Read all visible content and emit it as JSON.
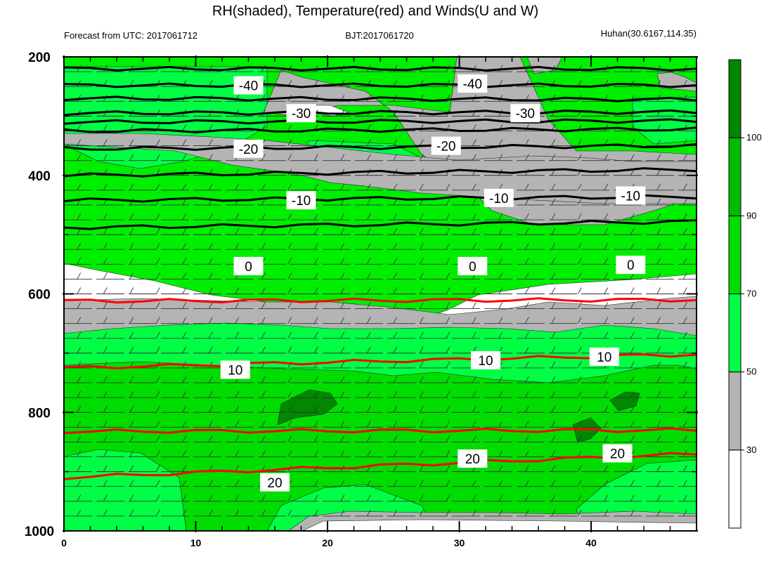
{
  "chart_data": {
    "type": "heatmap",
    "title": "RH(shaded), Temperature(red) and Winds(U and W)",
    "subtitle_left": "Forecast from UTC: 2017061712",
    "subtitle_center": "BJT:2017061720",
    "subtitle_right": "Huhan(30.6167,114.35)",
    "x_range": [
      0,
      48
    ],
    "x_ticks": [
      "0",
      "10",
      "20",
      "30",
      "40"
    ],
    "y_range": [
      1000,
      200
    ],
    "y_ticks": [
      "200",
      "400",
      "600",
      "800",
      "1000"
    ],
    "colorbar": {
      "levels": [
        "30",
        "50",
        "70",
        "90",
        "100"
      ],
      "colors": [
        "#ffffff",
        "#b4b4b4",
        "#00ff44",
        "#00dd00",
        "#00bb00",
        "#008800"
      ]
    },
    "temperature_labels": [
      "-40",
      "-30",
      "-20",
      "-10",
      "0",
      "10",
      "20"
    ],
    "temperature_contours": [
      {
        "level": -40,
        "color": "#000000",
        "labels": [
          {
            "x": 14,
            "p": 248
          },
          {
            "x": 31,
            "p": 245
          }
        ]
      },
      {
        "level": -30,
        "color": "#000000",
        "labels": [
          {
            "x": 18,
            "p": 295
          },
          {
            "x": 35,
            "p": 295
          }
        ]
      },
      {
        "level": -20,
        "color": "#000000",
        "labels": [
          {
            "x": 14,
            "p": 355
          },
          {
            "x": 29,
            "p": 350
          }
        ]
      },
      {
        "level": -10,
        "color": "#000000",
        "labels": [
          {
            "x": 18,
            "p": 442
          },
          {
            "x": 33,
            "p": 438
          },
          {
            "x": 43,
            "p": 434
          }
        ]
      },
      {
        "level": 0,
        "color": "#000000",
        "labels": [
          {
            "x": 14,
            "p": 553
          },
          {
            "x": 31,
            "p": 553
          },
          {
            "x": 43,
            "p": 551
          }
        ]
      },
      {
        "level": 10,
        "color": "#ff0000",
        "labels": [
          {
            "x": 13,
            "p": 728
          },
          {
            "x": 32,
            "p": 712
          },
          {
            "x": 41,
            "p": 706
          }
        ]
      },
      {
        "level": 20,
        "color": "#ff0000",
        "labels": [
          {
            "x": 16,
            "p": 918
          },
          {
            "x": 31,
            "p": 878
          },
          {
            "x": 42,
            "p": 869
          }
        ]
      }
    ]
  }
}
